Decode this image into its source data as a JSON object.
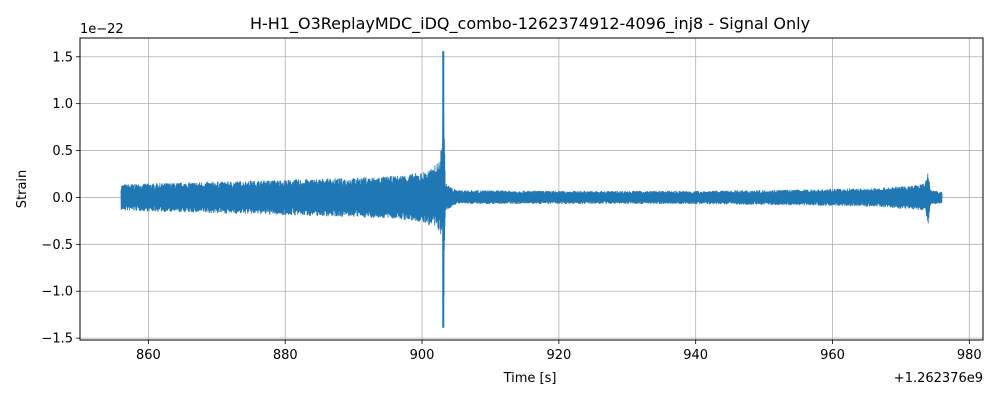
{
  "chart_data": {
    "type": "line",
    "title": "H-H1_O3ReplayMDC_iDQ_combo-1262374912-4096_inj8 - Signal Only",
    "xlabel": "Time [s]",
    "ylabel": "Strain",
    "x_offset_label": "+1.262376e9",
    "y_scale_label": "1e−22",
    "xlim": [
      850,
      982
    ],
    "ylim": [
      -1.52,
      1.7
    ],
    "x_ticks": [
      860,
      880,
      900,
      920,
      940,
      960,
      980
    ],
    "x_tick_labels": [
      "860",
      "880",
      "900",
      "920",
      "940",
      "960",
      "980"
    ],
    "y_ticks": [
      -1.5,
      -1.0,
      -0.5,
      0.0,
      0.5,
      1.0,
      1.5
    ],
    "y_tick_labels": [
      "−1.5",
      "−1.0",
      "−0.5",
      "0.0",
      "0.5",
      "1.0",
      "1.5"
    ],
    "grid": true,
    "series": [
      {
        "color": "#1f77b4",
        "envelope": [
          {
            "t": 856.0,
            "lo": -0.14,
            "hi": 0.14
          },
          {
            "t": 860.0,
            "lo": -0.15,
            "hi": 0.15
          },
          {
            "t": 870.0,
            "lo": -0.17,
            "hi": 0.17
          },
          {
            "t": 880.0,
            "lo": -0.19,
            "hi": 0.19
          },
          {
            "t": 890.0,
            "lo": -0.21,
            "hi": 0.21
          },
          {
            "t": 896.0,
            "lo": -0.23,
            "hi": 0.23
          },
          {
            "t": 900.0,
            "lo": -0.27,
            "hi": 0.27
          },
          {
            "t": 901.5,
            "lo": -0.31,
            "hi": 0.31
          },
          {
            "t": 902.5,
            "lo": -0.36,
            "hi": 0.4
          },
          {
            "t": 903.0,
            "lo": -0.45,
            "hi": 0.6
          },
          {
            "t": 903.1,
            "lo": -1.39,
            "hi": 1.56
          },
          {
            "t": 903.2,
            "lo": -1.1,
            "hi": 0.9
          },
          {
            "t": 903.4,
            "lo": -0.15,
            "hi": 0.15
          },
          {
            "t": 905.0,
            "lo": -0.07,
            "hi": 0.08
          },
          {
            "t": 920.0,
            "lo": -0.07,
            "hi": 0.07
          },
          {
            "t": 940.0,
            "lo": -0.07,
            "hi": 0.07
          },
          {
            "t": 960.0,
            "lo": -0.09,
            "hi": 0.09
          },
          {
            "t": 966.0,
            "lo": -0.1,
            "hi": 0.1
          },
          {
            "t": 972.0,
            "lo": -0.13,
            "hi": 0.13
          },
          {
            "t": 973.5,
            "lo": -0.15,
            "hi": 0.15
          },
          {
            "t": 974.0,
            "lo": -0.29,
            "hi": 0.31
          },
          {
            "t": 974.3,
            "lo": -0.08,
            "hi": 0.08
          },
          {
            "t": 976.0,
            "lo": -0.06,
            "hi": 0.06
          }
        ]
      }
    ]
  }
}
